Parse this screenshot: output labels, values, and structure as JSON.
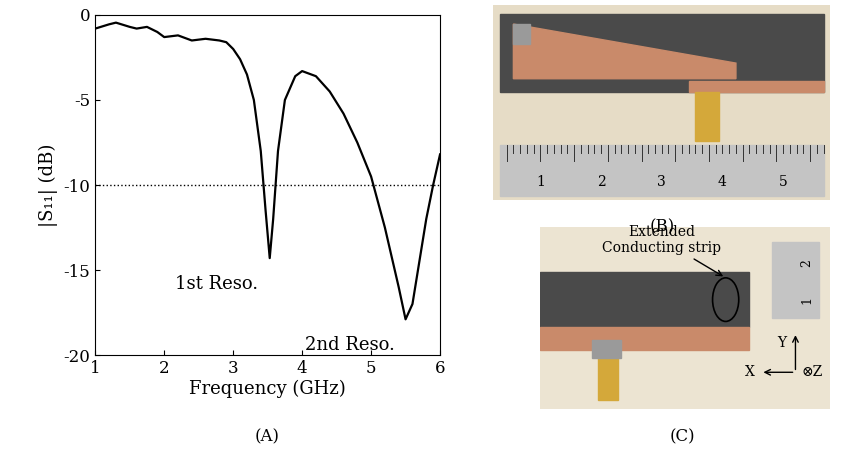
{
  "chart_data": {
    "type": "line",
    "xlabel": "Frequency (GHz)",
    "ylabel": "|S₁₁| (dB)",
    "x": [
      1.0,
      1.2,
      1.3,
      1.5,
      1.6,
      1.75,
      1.9,
      2.0,
      2.2,
      2.4,
      2.6,
      2.8,
      2.9,
      3.0,
      3.1,
      3.2,
      3.3,
      3.4,
      3.47,
      3.53,
      3.58,
      3.65,
      3.75,
      3.9,
      4.0,
      4.2,
      4.4,
      4.6,
      4.8,
      5.0,
      5.2,
      5.4,
      5.5,
      5.6,
      5.7,
      5.8,
      5.9,
      6.0
    ],
    "values": [
      -0.8,
      -0.55,
      -0.45,
      -0.7,
      -0.8,
      -0.7,
      -1.0,
      -1.3,
      -1.2,
      -1.5,
      -1.4,
      -1.5,
      -1.6,
      -2.0,
      -2.6,
      -3.5,
      -5.0,
      -8.0,
      -11.5,
      -14.3,
      -12.0,
      -8.0,
      -5.0,
      -3.6,
      -3.3,
      -3.6,
      -4.5,
      -5.8,
      -7.5,
      -9.5,
      -12.5,
      -16.0,
      -17.9,
      -17.0,
      -14.5,
      -12.0,
      -10.0,
      -8.2
    ],
    "color": "#000000",
    "threshold": -10,
    "annotations": [
      "1st Reso.",
      "2nd Reso."
    ],
    "xlim": [
      1,
      6
    ],
    "xticks": [
      1,
      2,
      3,
      4,
      5,
      6
    ],
    "ylim": [
      -20,
      0
    ],
    "yticks": [
      0,
      -5,
      -10,
      -15,
      -20
    ]
  },
  "panel_labels": [
    "(A)",
    "(B)",
    "(C)"
  ],
  "photo_b": {
    "ruler_labels": [
      "1",
      "2",
      "3",
      "4",
      "5"
    ]
  },
  "photo_c": {
    "annotation": "Extended\nConducting strip",
    "ruler_labels": [
      "1",
      "2"
    ],
    "axis_labels": {
      "y": "Y",
      "x": "X",
      "z": "⊗Z"
    }
  }
}
